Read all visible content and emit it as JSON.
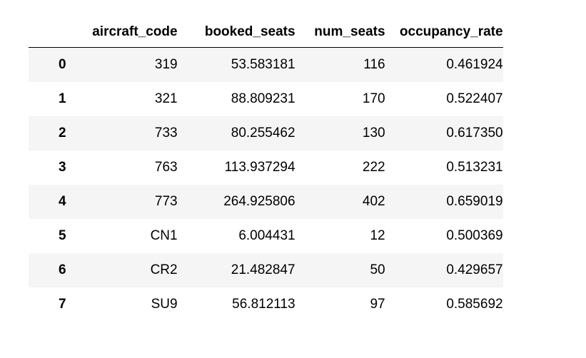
{
  "dataframe": {
    "columns": [
      "aircraft_code",
      "booked_seats",
      "num_seats",
      "occupancy_rate"
    ],
    "rows": [
      {
        "index": "0",
        "aircraft_code": "319",
        "booked_seats": "53.583181",
        "num_seats": "116",
        "occupancy_rate": "0.461924"
      },
      {
        "index": "1",
        "aircraft_code": "321",
        "booked_seats": "88.809231",
        "num_seats": "170",
        "occupancy_rate": "0.522407"
      },
      {
        "index": "2",
        "aircraft_code": "733",
        "booked_seats": "80.255462",
        "num_seats": "130",
        "occupancy_rate": "0.617350"
      },
      {
        "index": "3",
        "aircraft_code": "763",
        "booked_seats": "113.937294",
        "num_seats": "222",
        "occupancy_rate": "0.513231"
      },
      {
        "index": "4",
        "aircraft_code": "773",
        "booked_seats": "264.925806",
        "num_seats": "402",
        "occupancy_rate": "0.659019"
      },
      {
        "index": "5",
        "aircraft_code": "CN1",
        "booked_seats": "6.004431",
        "num_seats": "12",
        "occupancy_rate": "0.500369"
      },
      {
        "index": "6",
        "aircraft_code": "CR2",
        "booked_seats": "21.482847",
        "num_seats": "50",
        "occupancy_rate": "0.429657"
      },
      {
        "index": "7",
        "aircraft_code": "SU9",
        "booked_seats": "56.812113",
        "num_seats": "97",
        "occupancy_rate": "0.585692"
      }
    ]
  },
  "colors": {
    "header_border": "#000000",
    "row_stripe": "#f5f5f5",
    "background": "#ffffff",
    "text": "#000000"
  }
}
